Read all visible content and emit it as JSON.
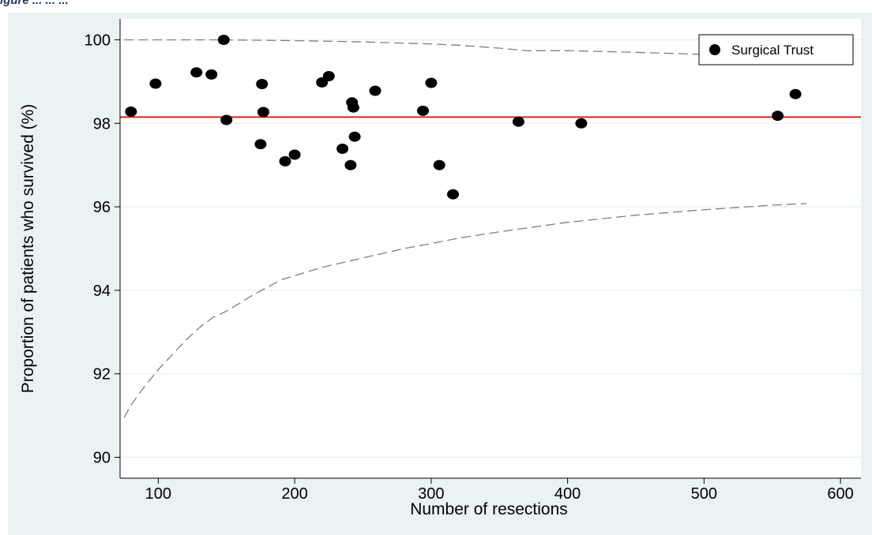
{
  "caption": "igure ... ... ...",
  "colors": {
    "panel_background": "#eaf2f3",
    "plot_background": "#ffffff",
    "grid": "#eaf2f3",
    "reference_line": "#e2231a",
    "control_limits": "#7f7f7f",
    "points": "#000000"
  },
  "chart_data": {
    "type": "scatter",
    "title": "",
    "xlabel": "Number of resections",
    "ylabel": "Proportion of patients who survived (%)",
    "xlim": [
      72,
      615
    ],
    "ylim": [
      89.5,
      100.5
    ],
    "x_ticks": [
      100,
      200,
      300,
      400,
      500,
      600
    ],
    "y_ticks": [
      90,
      92,
      94,
      96,
      98,
      100
    ],
    "grid": true,
    "legend_position": "top-right",
    "series": [
      {
        "name": "Surgical Trust",
        "marker": "circle",
        "x": [
          80,
          98,
          128,
          139,
          148,
          150,
          175,
          176,
          177,
          193,
          200,
          220,
          225,
          235,
          241,
          242,
          243,
          244,
          259,
          294,
          300,
          306,
          316,
          364,
          410,
          554,
          567
        ],
        "y": [
          98.28,
          98.95,
          99.22,
          99.17,
          100.0,
          98.08,
          97.5,
          98.94,
          98.27,
          97.09,
          97.25,
          98.98,
          99.13,
          97.39,
          97.0,
          98.5,
          98.38,
          97.68,
          98.78,
          98.3,
          98.97,
          97.0,
          96.3,
          98.04,
          98.0,
          98.18,
          98.7
        ]
      }
    ],
    "reference_line": {
      "y": 98.15
    },
    "control_limits": {
      "upper": {
        "x": [
          75,
          100,
          150,
          200,
          250,
          300,
          320,
          350,
          370,
          400,
          450,
          500,
          520,
          540,
          560,
          575
        ],
        "y": [
          100.0,
          100.0,
          100.0,
          99.98,
          99.95,
          99.9,
          99.87,
          99.8,
          99.74,
          99.74,
          99.7,
          99.65,
          99.62,
          99.6,
          99.58,
          99.56
        ]
      },
      "lower": {
        "x": [
          75,
          80,
          90,
          100,
          120,
          130,
          140,
          150,
          170,
          190,
          200,
          220,
          240,
          260,
          280,
          300,
          320,
          350,
          400,
          450,
          500,
          550,
          575
        ],
        "y": [
          90.95,
          91.25,
          91.7,
          92.1,
          92.8,
          93.1,
          93.35,
          93.5,
          93.9,
          94.25,
          94.35,
          94.55,
          94.7,
          94.85,
          95.0,
          95.12,
          95.25,
          95.4,
          95.63,
          95.8,
          95.93,
          96.04,
          96.08
        ]
      }
    }
  }
}
